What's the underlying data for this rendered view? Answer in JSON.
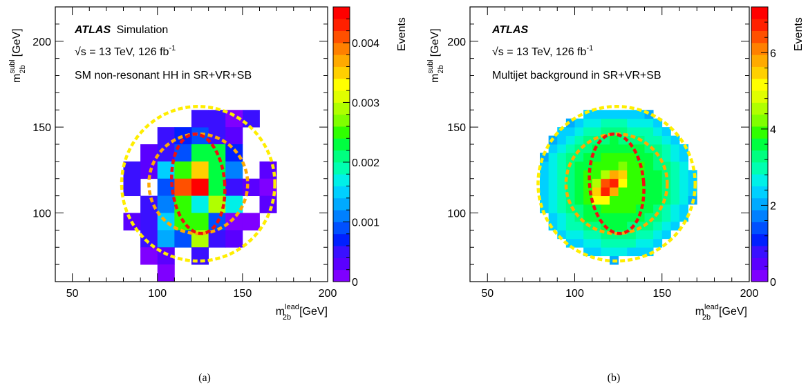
{
  "chart_data": [
    {
      "type": "heatmap",
      "panel_label": "(a)",
      "experiment": "ATLAS",
      "experiment_suffix": "Simulation",
      "energy_text": "√s = 13 TeV, 126 fb",
      "energy_superscript": "-1",
      "description": "SM non-resonant HH in SR+VR+SB",
      "xlabel": {
        "main": "m",
        "sup": "lead",
        "sub": "2b",
        "unit": "[GeV]"
      },
      "ylabel": {
        "main": "m",
        "sup": "subl",
        "sub": "2b",
        "unit": "[GeV]"
      },
      "zlabel": "Events",
      "xlim": [
        40,
        200
      ],
      "ylim": [
        60,
        220
      ],
      "zlim": [
        0,
        0.0046
      ],
      "xticks": [
        50,
        100,
        150,
        200
      ],
      "yticks": [
        100,
        150,
        200
      ],
      "zticks": [
        0,
        0.001,
        0.002,
        0.003,
        0.004
      ],
      "zticklabels": [
        "0",
        "0.001",
        "0.002",
        "0.003",
        "0.004"
      ],
      "bin_size": 10,
      "cells": [
        [
          150,
          150,
          0.0004
        ],
        [
          120,
          140,
          0.0008
        ],
        [
          130,
          150,
          0.0004
        ],
        [
          120,
          150,
          0.0004
        ],
        [
          140,
          150,
          0.0001
        ],
        [
          100,
          140,
          0.0004
        ],
        [
          110,
          140,
          0.0006
        ],
        [
          130,
          140,
          0.0004
        ],
        [
          140,
          140,
          0.0002
        ],
        [
          90,
          130,
          0.0002
        ],
        [
          100,
          130,
          0.0004
        ],
        [
          110,
          130,
          0.0009
        ],
        [
          120,
          130,
          0.0022
        ],
        [
          130,
          130,
          0.0023
        ],
        [
          140,
          130,
          0.0007
        ],
        [
          80,
          120,
          0.0004
        ],
        [
          90,
          120,
          0.0003
        ],
        [
          100,
          120,
          0.0014
        ],
        [
          110,
          120,
          0.0024
        ],
        [
          120,
          120,
          0.0034
        ],
        [
          130,
          120,
          0.0023
        ],
        [
          140,
          120,
          0.0011
        ],
        [
          160,
          120,
          0.0003
        ],
        [
          80,
          110,
          0.0004
        ],
        [
          100,
          110,
          0.0009
        ],
        [
          110,
          110,
          0.004
        ],
        [
          120,
          110,
          0.0044
        ],
        [
          130,
          110,
          0.0023
        ],
        [
          140,
          110,
          0.0005
        ],
        [
          150,
          110,
          0.0002
        ],
        [
          160,
          110,
          0.0001
        ],
        [
          90,
          100,
          0.0005
        ],
        [
          100,
          100,
          0.0011
        ],
        [
          110,
          100,
          0.0026
        ],
        [
          120,
          100,
          0.0017
        ],
        [
          130,
          100,
          0.0028
        ],
        [
          140,
          100,
          0.0017
        ],
        [
          160,
          100,
          0.0002
        ],
        [
          80,
          90,
          0.0003
        ],
        [
          90,
          90,
          0.0004
        ],
        [
          100,
          90,
          0.0014
        ],
        [
          110,
          90,
          0.0025
        ],
        [
          120,
          90,
          0.0026
        ],
        [
          130,
          90,
          0.0008
        ],
        [
          140,
          90,
          0.0001
        ],
        [
          150,
          90,
          0.0001
        ],
        [
          90,
          80,
          0.0005
        ],
        [
          100,
          80,
          0.0013
        ],
        [
          110,
          80,
          0.0008
        ],
        [
          120,
          80,
          0.0028
        ],
        [
          130,
          80,
          0.0004
        ],
        [
          140,
          80,
          0.0002
        ],
        [
          90,
          70,
          0.0001
        ],
        [
          100,
          70,
          0.0002
        ],
        [
          120,
          70,
          0.0004
        ],
        [
          100,
          60,
          0.0001
        ]
      ]
    },
    {
      "type": "heatmap",
      "panel_label": "(b)",
      "experiment": "ATLAS",
      "experiment_suffix": "",
      "energy_text": "√s = 13 TeV, 126 fb",
      "energy_superscript": "-1",
      "description": "Multijet background in SR+VR+SB",
      "xlabel": {
        "main": "m",
        "sup": "lead",
        "sub": "2b",
        "unit": "[GeV]"
      },
      "ylabel": {
        "main": "m",
        "sup": "subl",
        "sub": "2b",
        "unit": "[GeV]"
      },
      "zlabel": "Events",
      "xlim": [
        40,
        200
      ],
      "ylim": [
        60,
        220
      ],
      "zlim": [
        0,
        7.2
      ],
      "xticks": [
        50,
        100,
        150,
        200
      ],
      "yticks": [
        100,
        150,
        200
      ],
      "zticks": [
        0,
        2,
        4,
        6
      ],
      "zticklabels": [
        "0",
        "2",
        "4",
        "6"
      ],
      "bin_size": 5
    }
  ],
  "contours": [
    {
      "name": "SB",
      "color": "#ffee00",
      "center": [
        124,
        117
      ],
      "rx": 45,
      "ry": 45
    },
    {
      "name": "VR",
      "color": "#ffaa00",
      "center": [
        124,
        117
      ],
      "rx": 29,
      "ry": 29
    },
    {
      "name": "SR",
      "color": "#ee1111",
      "center": [
        124,
        117
      ],
      "rx": 15.5,
      "ry": 29,
      "tilt_deg": -5
    }
  ],
  "palette": [
    "#7f00ff",
    "#5a00ff",
    "#3a10ff",
    "#0020ff",
    "#0050ff",
    "#0080ff",
    "#00aaff",
    "#00d0ff",
    "#00f0e8",
    "#00ffb0",
    "#00ff80",
    "#00ff40",
    "#30ff00",
    "#80ff00",
    "#b0ff00",
    "#e0ff00",
    "#ffff00",
    "#ffd000",
    "#ffaa00",
    "#ff8000",
    "#ff5000",
    "#ff2000",
    "#ff0000"
  ],
  "captions": [
    "(a)",
    "(b)"
  ]
}
